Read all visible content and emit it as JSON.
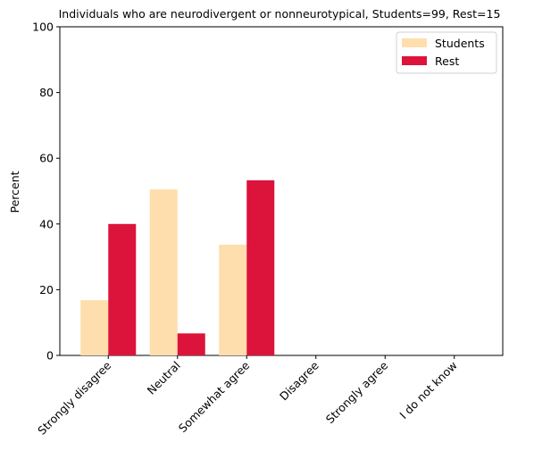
{
  "chart_data": {
    "type": "bar",
    "title": "Individuals who are neurodivergent or nonneurotypical, Students=99, Rest=15",
    "xlabel": "",
    "ylabel": "Percent",
    "ylim": [
      0,
      100
    ],
    "yticks": [
      "0",
      "20",
      "40",
      "60",
      "80",
      "100"
    ],
    "categories": [
      "Strongly disagree",
      "Neutral",
      "Somewhat agree",
      "Disagree",
      "Strongly agree",
      "I do not know"
    ],
    "series": [
      {
        "name": "Students",
        "color": "#FFDEAD",
        "values": [
          16.8,
          50.5,
          33.7,
          0,
          0,
          0
        ]
      },
      {
        "name": "Rest",
        "color": "#DC143C",
        "values": [
          40.0,
          6.7,
          53.3,
          0,
          0,
          0
        ]
      }
    ],
    "grid": false,
    "legend": "top-right"
  }
}
